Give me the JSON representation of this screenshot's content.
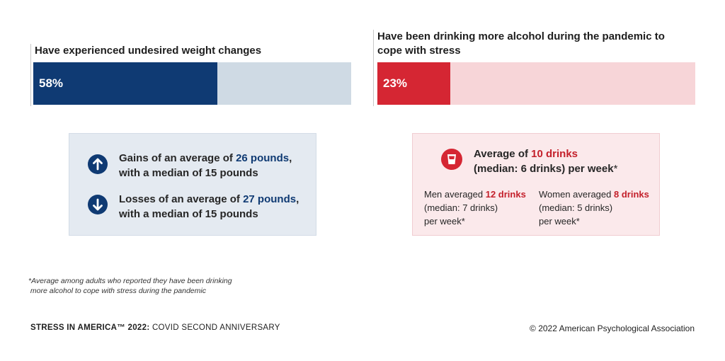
{
  "chart_data": [
    {
      "type": "bar",
      "title": "Have experienced undesired weight changes",
      "categories": [
        "Have experienced undesired weight changes"
      ],
      "values": [
        58
      ],
      "value_labels": [
        "58%"
      ],
      "ylim": [
        0,
        100
      ],
      "fill_color": "#0f3a73",
      "track_color": "#cfdae4"
    },
    {
      "type": "bar",
      "title": "Have been drinking more alcohol during the pandemic to cope with stress",
      "categories": [
        "Have been drinking more alcohol during the pandemic to cope with stress"
      ],
      "values": [
        23
      ],
      "value_labels": [
        "23%"
      ],
      "ylim": [
        0,
        100
      ],
      "fill_color": "#d52633",
      "track_color": "#f7d5d8"
    }
  ],
  "weight_box": {
    "gain": {
      "icon": "arrow-up-icon",
      "line1_pre": "Gains of an average of ",
      "line1_num": "26 pounds",
      "line1_post": ",",
      "line2": "with a median of 15 pounds"
    },
    "loss": {
      "icon": "arrow-down-icon",
      "line1_pre": "Losses of an average of ",
      "line1_num": "27 pounds",
      "line1_post": ",",
      "line2": "with a median of 15 pounds"
    }
  },
  "alcohol_box": {
    "icon": "drink-glass-icon",
    "line1_pre": "Average of ",
    "line1_num": "10 drinks",
    "line2": "(median: 6 drinks) per week",
    "line2_star": "*",
    "men": {
      "line1_pre": "Men averaged ",
      "line1_num": "12 drinks",
      "line2": "(median: 7 drinks)",
      "line3": "per week*"
    },
    "women": {
      "line1_pre": "Women averaged ",
      "line1_num": "8 drinks",
      "line2": "(median: 5 drinks)",
      "line3": "per week*"
    }
  },
  "footnote": {
    "line1": "*Average among adults who reported they have been drinking",
    "line2": "more alcohol to cope with stress during the pandemic"
  },
  "footer": {
    "left_bold": "STRESS IN AMERICA™ 2022:",
    "left_rest": " COVID SECOND ANNIVERSARY",
    "right": "© 2022 American Psychological Association"
  }
}
